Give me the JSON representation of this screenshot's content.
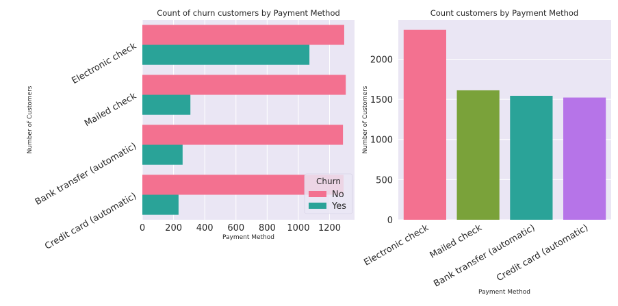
{
  "colors": {
    "plot_bg": "#eae6f4",
    "grid": "#ffffff",
    "no": "#f37190",
    "yes": "#2aa398",
    "mailed": "#7aa23a",
    "credit": "#b674e8"
  },
  "chart_data": [
    {
      "type": "bar",
      "orientation": "horizontal",
      "title": "Count of churn customers by Payment Method",
      "xlabel": "Payment Method",
      "ylabel": "Number of Customers",
      "categories": [
        "Electronic check",
        "Mailed check",
        "Bank transfer (automatic)",
        "Credit card (automatic)"
      ],
      "series": [
        {
          "name": "No",
          "values": [
            1294,
            1304,
            1286,
            1290
          ]
        },
        {
          "name": "Yes",
          "values": [
            1071,
            308,
            258,
            232
          ]
        }
      ],
      "xlim": [
        0,
        1360
      ],
      "xticks": [
        0,
        200,
        400,
        600,
        800,
        1000,
        1200
      ],
      "legend": {
        "title": "Churn",
        "position": "bottom-right"
      },
      "grid": true
    },
    {
      "type": "bar",
      "orientation": "vertical",
      "title": "Count customers by Payment Method",
      "xlabel": "Payment Method",
      "ylabel": "Number of Customers",
      "categories": [
        "Electronic check",
        "Mailed check",
        "Bank transfer (automatic)",
        "Credit card (automatic)"
      ],
      "values": [
        2365,
        1612,
        1544,
        1522
      ],
      "bar_colors": [
        "#f37190",
        "#7aa23a",
        "#2aa398",
        "#b674e8"
      ],
      "ylim": [
        0,
        2490
      ],
      "yticks": [
        0,
        500,
        1000,
        1500,
        2000
      ],
      "grid": true
    }
  ]
}
